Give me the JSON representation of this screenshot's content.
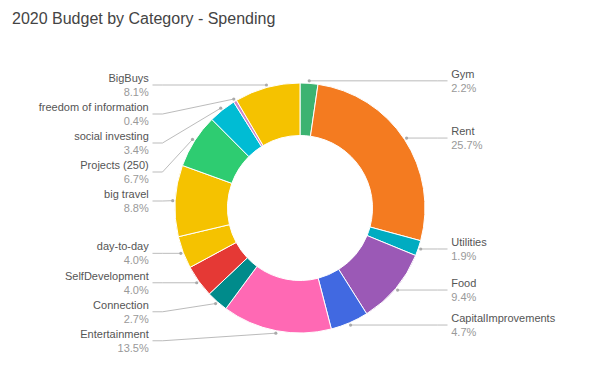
{
  "chart_data": {
    "type": "donut",
    "title": "2020 Budget by Category - Spending",
    "categories": [
      "Gym",
      "Rent",
      "Utilities",
      "Food",
      "CapitalImprovements",
      "Entertainment",
      "Connection",
      "SelfDevelopment",
      "day-to-day",
      "big travel",
      "Projects (250)",
      "social investing",
      "freedom of information",
      "BigBuys"
    ],
    "values": [
      2.2,
      25.7,
      1.9,
      9.4,
      4.7,
      13.5,
      2.7,
      4.0,
      4.0,
      8.8,
      6.7,
      3.4,
      0.4,
      8.1
    ],
    "value_labels": [
      "2.2%",
      "25.7%",
      "1.9%",
      "9.4%",
      "4.7%",
      "13.5%",
      "2.7%",
      "4.0%",
      "4.0%",
      "8.8%",
      "6.7%",
      "3.4%",
      "0.4%",
      "8.1%"
    ],
    "colors": [
      "#3CB371",
      "#F47B20",
      "#00ACC1",
      "#9B59B6",
      "#4169E1",
      "#FF69B4",
      "#008B8B",
      "#E53935",
      "#F5C200",
      "#F5C200",
      "#2ECC71",
      "#00BCD4",
      "#CC88CC",
      "#F5C200"
    ],
    "data_labels": true
  }
}
